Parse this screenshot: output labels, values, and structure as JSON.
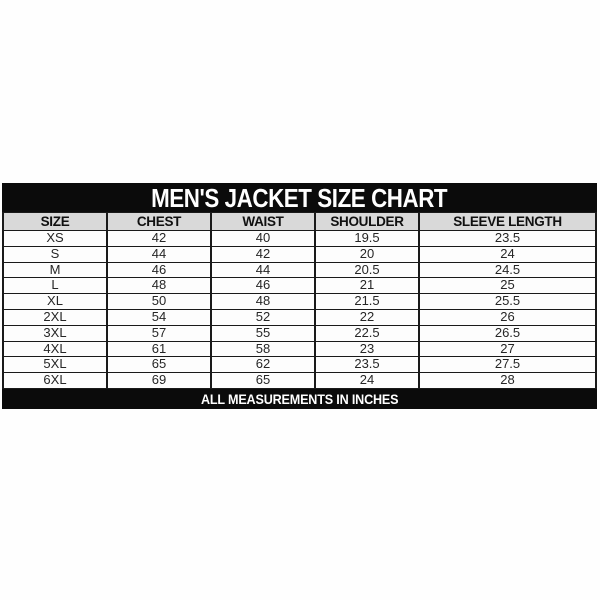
{
  "page": {
    "background": "#ffffff"
  },
  "banner": {
    "title": "MEN'S JACKET SIZE CHART",
    "background": "#0b0b0b",
    "text_color": "#ffffff"
  },
  "footer": {
    "label": "ALL MEASUREMENTS IN INCHES",
    "background": "#0b0b0b",
    "text_color": "#ffffff"
  },
  "table_style": {
    "header_background": "#d9d9d9",
    "row_background": "#fdfdfd",
    "border_color": "#1a1a1a",
    "text_color": "#262626"
  },
  "chart_data": {
    "type": "table",
    "title": "MEN'S JACKET SIZE CHART",
    "note": "ALL MEASUREMENTS IN INCHES",
    "units": "inches",
    "columns": [
      "SIZE",
      "CHEST",
      "WAIST",
      "SHOULDER",
      "SLEEVE LENGTH"
    ],
    "rows": [
      [
        "XS",
        "42",
        "40",
        "19.5",
        "23.5"
      ],
      [
        "S",
        "44",
        "42",
        "20",
        "24"
      ],
      [
        "M",
        "46",
        "44",
        "20.5",
        "24.5"
      ],
      [
        "L",
        "48",
        "46",
        "21",
        "25"
      ],
      [
        "XL",
        "50",
        "48",
        "21.5",
        "25.5"
      ],
      [
        "2XL",
        "54",
        "52",
        "22",
        "26"
      ],
      [
        "3XL",
        "57",
        "55",
        "22.5",
        "26.5"
      ],
      [
        "4XL",
        "61",
        "58",
        "23",
        "27"
      ],
      [
        "5XL",
        "65",
        "62",
        "23.5",
        "27.5"
      ],
      [
        "6XL",
        "69",
        "65",
        "24",
        "28"
      ]
    ]
  }
}
